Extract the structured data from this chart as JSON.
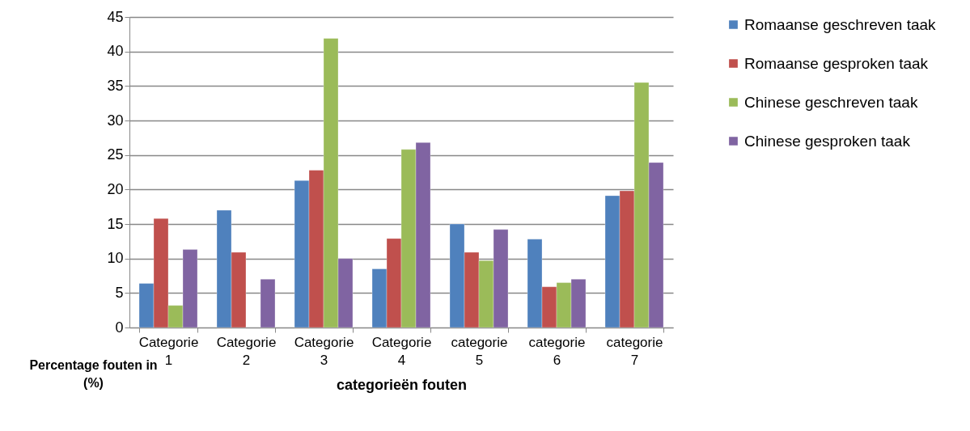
{
  "chart_data": {
    "type": "bar",
    "xlabel": "categorieën fouten",
    "ylabel": "Percentage fouten in (%)",
    "categories": [
      "Categorie 1",
      "Categorie 2",
      "Categorie 3",
      "Categorie 4",
      "categorie 5",
      "categorie 6",
      "categorie 7"
    ],
    "series": [
      {
        "name": "Romaanse geschreven taak",
        "color": "#4f81bd",
        "values": [
          6.4,
          17,
          21.3,
          8.5,
          15,
          12.8,
          19.1
        ]
      },
      {
        "name": "Romaanse gesproken taak",
        "color": "#c0504d",
        "values": [
          15.8,
          10.9,
          22.8,
          12.9,
          10.9,
          5.9,
          19.8
        ]
      },
      {
        "name": "Chinese geschreven taak",
        "color": "#9bbb59",
        "values": [
          3.2,
          null,
          41.9,
          25.8,
          9.7,
          6.5,
          35.5
        ]
      },
      {
        "name": "Chinese gesproken taak",
        "color": "#8064a2",
        "values": [
          11.3,
          7,
          10,
          26.8,
          14.2,
          7,
          23.9
        ]
      }
    ],
    "ylim": [
      0,
      45
    ],
    "yticks": [
      0,
      5,
      10,
      15,
      20,
      25,
      30,
      35,
      40,
      45
    ],
    "grid": "y",
    "legend": "right"
  }
}
